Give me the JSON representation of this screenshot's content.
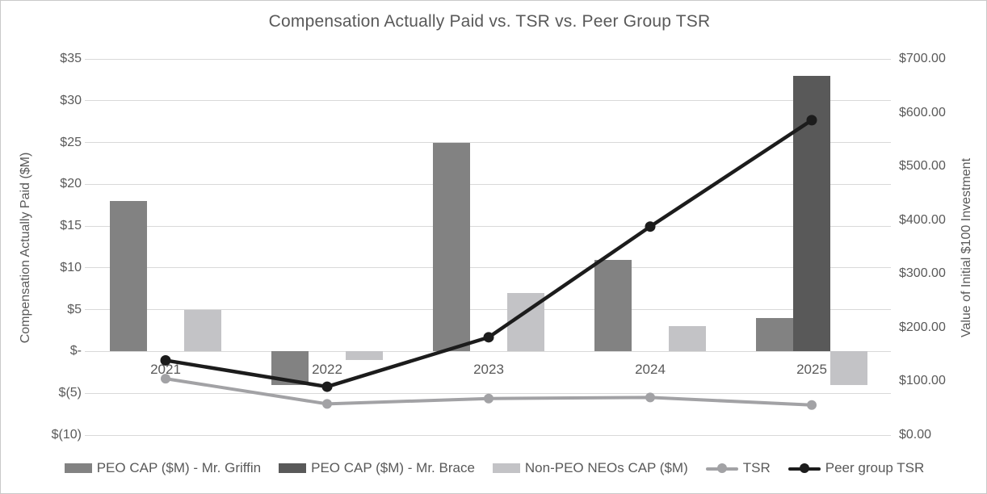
{
  "title": "Compensation Actually Paid vs. TSR vs. Peer Group TSR",
  "left_axis": {
    "title": "Compensation Actually Paid ($M)",
    "tick_labels": [
      "$35",
      "$30",
      "$25",
      "$20",
      "$15",
      "$10",
      "$5",
      "$-",
      "$(5)",
      "$(10)"
    ],
    "tick_values": [
      35,
      30,
      25,
      20,
      15,
      10,
      5,
      0,
      -5,
      -10
    ]
  },
  "right_axis": {
    "title": "Value of Initial $100 Investment",
    "tick_labels": [
      "$700.00",
      "$600.00",
      "$500.00",
      "$400.00",
      "$300.00",
      "$200.00",
      "$100.00",
      "$0.00"
    ],
    "tick_values": [
      700,
      600,
      500,
      400,
      300,
      200,
      100,
      0
    ]
  },
  "chart_data": {
    "type": "bar",
    "subtype": "bar+line combo, dual axis",
    "title": "Compensation Actually Paid vs. TSR vs. Peer Group TSR",
    "categories": [
      "2021",
      "2022",
      "2023",
      "2024",
      "2025"
    ],
    "xlabel": "",
    "ylabel_left": "Compensation Actually Paid ($M)",
    "ylabel_right": "Value of Initial $100 Investment",
    "ylim_left": [
      -10,
      35
    ],
    "ylim_right": [
      0,
      700
    ],
    "grid": "horizontal only",
    "legend_position": "bottom",
    "bar_series": [
      {
        "name": "PEO CAP ($M) - Mr. Griffin",
        "color": "#828282",
        "axis": "left",
        "values": [
          18,
          -4,
          25,
          11,
          4
        ]
      },
      {
        "name": "PEO CAP ($M) - Mr. Brace",
        "color": "#595959",
        "axis": "left",
        "values": [
          null,
          null,
          null,
          null,
          33
        ]
      },
      {
        "name": "Non-PEO NEOs CAP ($M)",
        "color": "#c3c3c6",
        "axis": "left",
        "values": [
          5,
          -1,
          7,
          3,
          -4
        ]
      }
    ],
    "line_series": [
      {
        "name": "TSR",
        "color": "#a2a2a5",
        "axis": "right",
        "values": [
          105,
          58,
          68,
          70,
          56
        ]
      },
      {
        "name": "Peer group TSR",
        "color": "#1c1c1c",
        "axis": "right",
        "values": [
          139,
          90,
          182,
          388,
          586
        ]
      }
    ]
  }
}
